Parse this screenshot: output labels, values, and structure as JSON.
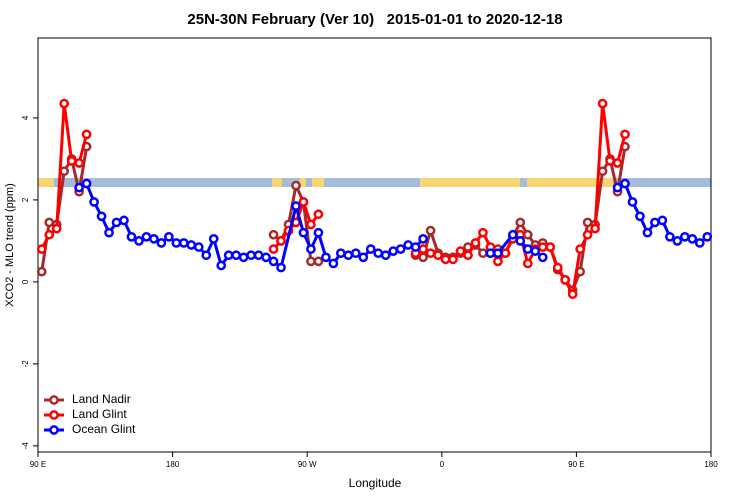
{
  "chart_data": {
    "type": "line",
    "title": "25N-30N February (Ver 10)   2015-01-01 to 2020-12-18",
    "x_label": "Longitude",
    "y_label": "XCO2 - MLO trend (ppm)",
    "xlim": [
      90,
      540
    ],
    "ylim": [
      -4.15,
      5.95
    ],
    "xticks": [
      {
        "value": 90,
        "label": "90 E"
      },
      180,
      {
        "value": 270,
        "label": "90 W"
      },
      {
        "value": 360,
        "label": "0"
      },
      {
        "value": 450,
        "label": "90 E"
      },
      {
        "value": 540,
        "label": "180"
      }
    ],
    "yticks": [
      -4,
      -2,
      0,
      2,
      4
    ],
    "legend": "bottom-left",
    "series": [
      {
        "name": "Land Nadir",
        "color": "#a52a2a",
        "x": [
          92.5,
          97.5,
          102.5,
          107.5,
          112.5,
          117.5,
          122.5,
          127.5,
          247.5,
          252.5,
          257.5,
          262.5,
          267.5,
          272.5,
          277.5,
          282.5,
          342.5,
          347.5,
          352.5,
          357.5,
          362.5,
          367.5,
          372.5,
          377.5,
          382.5,
          387.5,
          392.5,
          397.5,
          402.5,
          407.5,
          412.5,
          417.5,
          422.5,
          427.5,
          432.5,
          437.5,
          442.5,
          447.5,
          452.5,
          457.5,
          462.5,
          467.5,
          472.5,
          477.5,
          482.5
        ],
        "values": [
          0.25,
          1.45,
          1.4,
          2.7,
          3.0,
          2.2,
          3.3,
          null,
          1.15,
          1.0,
          1.4,
          2.35,
          1.95,
          0.5,
          0.5,
          null,
          0.65,
          0.6,
          1.25,
          0.7,
          0.6,
          0.6,
          0.7,
          0.85,
          0.9,
          0.7,
          0.7,
          0.8,
          0.7,
          1.1,
          1.45,
          1.15,
          0.9,
          0.95,
          0.85,
          0.3,
          0.05,
          -0.2,
          0.25,
          1.45,
          1.4,
          2.7,
          3.0,
          2.2,
          3.3
        ]
      },
      {
        "name": "Land Glint",
        "color": "#ff0000",
        "x": [
          92.5,
          97.5,
          102.5,
          107.5,
          112.5,
          117.5,
          122.5,
          127.5,
          247.5,
          252.5,
          257.5,
          262.5,
          267.5,
          272.5,
          277.5,
          282.5,
          342.5,
          347.5,
          352.5,
          357.5,
          362.5,
          367.5,
          372.5,
          377.5,
          382.5,
          387.5,
          392.5,
          397.5,
          402.5,
          407.5,
          412.5,
          417.5,
          422.5,
          427.5,
          432.5,
          437.5,
          442.5,
          447.5,
          452.5,
          457.5,
          462.5,
          467.5,
          472.5,
          477.5,
          482.5
        ],
        "values": [
          0.8,
          1.15,
          1.3,
          4.35,
          2.95,
          2.9,
          3.6,
          null,
          0.8,
          1.0,
          1.25,
          1.45,
          1.95,
          1.4,
          1.65,
          null,
          0.7,
          0.8,
          0.7,
          0.65,
          0.55,
          0.55,
          0.75,
          0.65,
          0.95,
          1.2,
          0.85,
          0.5,
          0.7,
          1.05,
          1.15,
          0.45,
          0.8,
          0.85,
          0.85,
          0.35,
          0.05,
          -0.3,
          0.8,
          1.15,
          1.3,
          4.35,
          2.95,
          2.9,
          3.6
        ]
      },
      {
        "name": "Ocean Glint",
        "color": "#0000ff",
        "x": [
          117.5,
          122.5,
          127.5,
          132.5,
          137.5,
          142.5,
          147.5,
          152.5,
          157.5,
          162.5,
          167.5,
          172.5,
          177.5,
          182.5,
          187.5,
          192.5,
          197.5,
          202.5,
          207.5,
          212.5,
          217.5,
          222.5,
          227.5,
          232.5,
          237.5,
          242.5,
          247.5,
          252.5,
          262.5,
          267.5,
          272.5,
          277.5,
          282.5,
          287.5,
          292.5,
          297.5,
          302.5,
          307.5,
          312.5,
          317.5,
          322.5,
          327.5,
          332.5,
          337.5,
          342.5,
          347.5,
          352.5,
          392.5,
          397.5,
          407.5,
          412.5,
          417.5,
          422.5,
          427.5,
          432.5,
          477.5,
          482.5,
          487.5,
          492.5,
          497.5,
          502.5,
          507.5,
          512.5,
          517.5,
          522.5,
          527.5,
          532.5,
          537.5
        ],
        "values": [
          2.3,
          2.4,
          1.95,
          1.6,
          1.2,
          1.45,
          1.5,
          1.1,
          1.0,
          1.1,
          1.05,
          0.95,
          1.1,
          0.95,
          0.95,
          0.9,
          0.85,
          0.65,
          1.05,
          0.4,
          0.65,
          0.65,
          0.6,
          0.65,
          0.65,
          0.6,
          0.5,
          0.35,
          1.85,
          1.2,
          0.8,
          1.2,
          0.6,
          0.45,
          0.7,
          0.65,
          0.7,
          0.6,
          0.8,
          0.7,
          0.65,
          0.75,
          0.8,
          0.9,
          0.85,
          1.05,
          null,
          0.7,
          0.7,
          1.15,
          1.0,
          0.8,
          0.75,
          0.6,
          null,
          2.3,
          2.4,
          1.95,
          1.6,
          1.2,
          1.45,
          1.5,
          1.1,
          1.0,
          1.1,
          1.05,
          0.95,
          1.1
        ]
      }
    ]
  }
}
